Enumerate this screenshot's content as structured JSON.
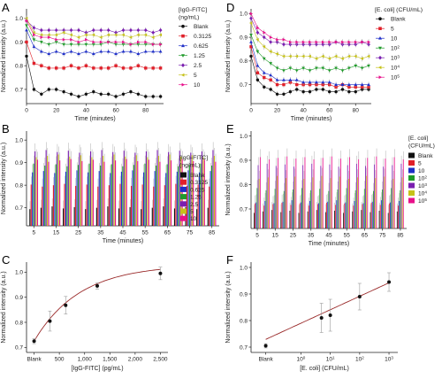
{
  "colors": {
    "Blank": "#111111",
    "c1": "#e0202a",
    "c2": "#1f2fc8",
    "c3": "#1f9a2a",
    "c4": "#7a1fb0",
    "c5": "#c6c21a",
    "c6": "#e8108a",
    "fit": "#9a2a2a",
    "err": "#999999"
  },
  "panels": {
    "A": "A",
    "B": "B",
    "C": "C",
    "D": "D",
    "E": "E",
    "F": "F"
  },
  "chart_data": [
    {
      "id": "A",
      "type": "scatter",
      "legend_title": [
        "[IgG-FITC]",
        "(ng/mL)"
      ],
      "xlabel": "Time (minutes)",
      "ylabel": "Normalized intensity (a.u.)",
      "xlim": [
        0,
        92
      ],
      "ylim": [
        0.64,
        1.04
      ],
      "xticks": [
        0,
        20,
        40,
        60,
        80
      ],
      "yticks": [
        0.7,
        0.8,
        0.9,
        1.0
      ],
      "x": [
        0,
        5,
        10,
        15,
        20,
        25,
        30,
        35,
        40,
        45,
        50,
        55,
        60,
        65,
        70,
        75,
        80,
        85,
        90
      ],
      "series": [
        {
          "name": "Blank",
          "marker": "circle",
          "values": [
            0.84,
            0.7,
            0.68,
            0.7,
            0.7,
            0.69,
            0.68,
            0.67,
            0.68,
            0.69,
            0.68,
            0.68,
            0.67,
            0.68,
            0.69,
            0.68,
            0.67,
            0.67,
            0.67
          ]
        },
        {
          "name": "0.3125",
          "marker": "square",
          "values": [
            0.9,
            0.81,
            0.8,
            0.79,
            0.79,
            0.79,
            0.8,
            0.79,
            0.8,
            0.79,
            0.79,
            0.79,
            0.8,
            0.79,
            0.79,
            0.8,
            0.79,
            0.79,
            0.79
          ]
        },
        {
          "name": "0.625",
          "marker": "triangle",
          "values": [
            0.95,
            0.88,
            0.86,
            0.85,
            0.86,
            0.85,
            0.86,
            0.85,
            0.86,
            0.85,
            0.86,
            0.86,
            0.85,
            0.86,
            0.86,
            0.85,
            0.86,
            0.86,
            0.86
          ]
        },
        {
          "name": "1.25",
          "marker": "triangle-down",
          "values": [
            0.97,
            0.91,
            0.9,
            0.89,
            0.9,
            0.89,
            0.89,
            0.89,
            0.89,
            0.89,
            0.89,
            0.9,
            0.89,
            0.89,
            0.89,
            0.89,
            0.89,
            0.89,
            0.89
          ]
        },
        {
          "name": "2.5",
          "marker": "diamond",
          "values": [
            0.99,
            0.96,
            0.95,
            0.95,
            0.95,
            0.95,
            0.95,
            0.95,
            0.94,
            0.95,
            0.95,
            0.95,
            0.94,
            0.95,
            0.95,
            0.95,
            0.95,
            0.94,
            0.95
          ]
        },
        {
          "name": "5",
          "marker": "triangle-left",
          "values": [
            1.0,
            0.94,
            0.93,
            0.93,
            0.93,
            0.94,
            0.93,
            0.92,
            0.93,
            0.93,
            0.92,
            0.93,
            0.93,
            0.93,
            0.92,
            0.93,
            0.93,
            0.92,
            0.93
          ]
        },
        {
          "name": "10",
          "marker": "triangle-right",
          "values": [
            0.99,
            0.93,
            0.92,
            0.92,
            0.91,
            0.91,
            0.91,
            0.9,
            0.91,
            0.9,
            0.9,
            0.9,
            0.9,
            0.9,
            0.89,
            0.9,
            0.9,
            0.89,
            0.89
          ]
        }
      ]
    },
    {
      "id": "D",
      "type": "scatter",
      "legend_title": [
        "[E. coli] (CFU/mL)"
      ],
      "xlabel": "Time (minutes)",
      "ylabel": "Normalized intensity (a.u.)",
      "xlim": [
        0,
        92
      ],
      "ylim": [
        0.62,
        1.02
      ],
      "xticks": [
        0,
        20,
        40,
        60,
        80
      ],
      "yticks": [
        0.7,
        0.8,
        0.9,
        1.0
      ],
      "x": [
        0,
        5,
        10,
        15,
        20,
        25,
        30,
        35,
        40,
        45,
        50,
        55,
        60,
        65,
        70,
        75,
        80,
        85,
        90
      ],
      "series": [
        {
          "name": "Blank",
          "marker": "circle",
          "values": [
            0.82,
            0.72,
            0.69,
            0.68,
            0.66,
            0.66,
            0.67,
            0.68,
            0.67,
            0.67,
            0.68,
            0.68,
            0.67,
            0.67,
            0.68,
            0.67,
            0.67,
            0.68,
            0.68
          ]
        },
        {
          "name": "5",
          "marker": "square",
          "values": [
            0.86,
            0.75,
            0.73,
            0.72,
            0.7,
            0.7,
            0.71,
            0.7,
            0.7,
            0.7,
            0.7,
            0.7,
            0.7,
            0.69,
            0.7,
            0.69,
            0.69,
            0.69,
            0.69
          ]
        },
        {
          "name": "10",
          "marker": "triangle",
          "values": [
            0.88,
            0.78,
            0.75,
            0.74,
            0.72,
            0.72,
            0.72,
            0.72,
            0.71,
            0.71,
            0.71,
            0.71,
            0.71,
            0.7,
            0.7,
            0.7,
            0.7,
            0.7,
            0.7
          ]
        },
        {
          "name": "10^2",
          "marker": "triangle-down",
          "values": [
            0.91,
            0.84,
            0.81,
            0.79,
            0.77,
            0.76,
            0.77,
            0.76,
            0.77,
            0.76,
            0.77,
            0.77,
            0.76,
            0.77,
            0.76,
            0.77,
            0.78,
            0.77,
            0.78
          ]
        },
        {
          "name": "10^3",
          "marker": "diamond",
          "values": [
            0.98,
            0.92,
            0.9,
            0.88,
            0.88,
            0.87,
            0.87,
            0.87,
            0.87,
            0.87,
            0.87,
            0.87,
            0.87,
            0.88,
            0.87,
            0.87,
            0.87,
            0.88,
            0.87
          ]
        },
        {
          "name": "10^4",
          "marker": "triangle-left",
          "values": [
            0.96,
            0.89,
            0.86,
            0.84,
            0.83,
            0.82,
            0.82,
            0.82,
            0.82,
            0.82,
            0.81,
            0.82,
            0.81,
            0.82,
            0.81,
            0.82,
            0.82,
            0.81,
            0.82
          ]
        },
        {
          "name": "10^5",
          "marker": "triangle-right",
          "values": [
            1.0,
            0.94,
            0.92,
            0.9,
            0.89,
            0.89,
            0.88,
            0.88,
            0.88,
            0.88,
            0.88,
            0.88,
            0.88,
            0.88,
            0.88,
            0.88,
            0.88,
            0.88,
            0.88
          ]
        }
      ]
    },
    {
      "id": "B",
      "type": "bar",
      "legend_title": [
        "[IgG-FITC]",
        "(ng/mL)"
      ],
      "xlabel": "Time (minutes)",
      "ylabel": "Normalized intensity (a.u.)",
      "ylim": [
        0.62,
        1.04
      ],
      "yticks": [
        0.7,
        0.8,
        0.9,
        1.0
      ],
      "categories": [
        "5",
        "10",
        "15",
        "20",
        "25",
        "30",
        "35",
        "40",
        "45",
        "50",
        "55",
        "60",
        "65",
        "70",
        "75",
        "80",
        "85"
      ],
      "tick_labels": [
        "5",
        "15",
        "25",
        "35",
        "45",
        "55",
        "65",
        "75",
        "85"
      ],
      "series": [
        {
          "name": "Blank",
          "value": 0.7
        },
        {
          "name": "0.3125",
          "value": 0.8
        },
        {
          "name": "0.625",
          "value": 0.86
        },
        {
          "name": "1.25",
          "value": 0.89
        },
        {
          "name": "2.5",
          "value": 0.95
        },
        {
          "name": "5",
          "value": 0.93
        },
        {
          "name": "10",
          "value": 0.91
        }
      ]
    },
    {
      "id": "E",
      "type": "bar",
      "legend_title": [
        "[E. coli]",
        "(CFU/mL)"
      ],
      "xlabel": "Time (minutes)",
      "ylabel": "Normalized intensity (a.u.)",
      "ylim": [
        0.62,
        1.02
      ],
      "yticks": [
        0.7,
        0.8,
        0.9,
        1.0
      ],
      "categories": [
        "5",
        "10",
        "15",
        "20",
        "25",
        "30",
        "35",
        "40",
        "45",
        "50",
        "55",
        "60",
        "65",
        "70",
        "75",
        "80",
        "85"
      ],
      "tick_labels": [
        "5",
        "15",
        "25",
        "35",
        "45",
        "55",
        "65",
        "75",
        "85"
      ],
      "series": [
        {
          "name": "Blank",
          "value": 0.69
        },
        {
          "name": "5",
          "value": 0.72
        },
        {
          "name": "10",
          "value": 0.73
        },
        {
          "name": "10^2",
          "value": 0.78
        },
        {
          "name": "10^3",
          "value": 0.88
        },
        {
          "name": "10^4",
          "value": 0.83
        },
        {
          "name": "10^5",
          "value": 0.91
        }
      ]
    },
    {
      "id": "C",
      "type": "scatter",
      "xlabel": "[IgG-FITC] (pg/mL)",
      "ylabel": "Normalized intensity (a.u.)",
      "xlim": [
        -150,
        2650
      ],
      "ylim": [
        0.68,
        1.04
      ],
      "xticks": [
        500,
        1000,
        1500,
        2000,
        2500
      ],
      "xtick_labels": [
        "500",
        "1,000",
        "1,500",
        "2,000",
        "2,500"
      ],
      "xtick_blank": "Blank",
      "yticks": [
        0.7,
        0.8,
        0.9,
        1.0
      ],
      "points": [
        {
          "x": 0,
          "y": 0.725,
          "err": 0.01
        },
        {
          "x": 312.5,
          "y": 0.805,
          "err": 0.04
        },
        {
          "x": 625,
          "y": 0.868,
          "err": 0.035
        },
        {
          "x": 1250,
          "y": 0.945,
          "err": 0.012
        },
        {
          "x": 2500,
          "y": 0.995,
          "err": 0.025
        }
      ]
    },
    {
      "id": "F",
      "type": "scatter",
      "xlabel": "[E. coli] (CFU/mL)",
      "ylabel": "Normalized intensity (a.u.)",
      "xlim": [
        -1.7,
        3.3
      ],
      "ylim": [
        0.68,
        1.02
      ],
      "xscale": "log",
      "xticks": [
        0,
        1,
        2,
        3
      ],
      "xtick_labels": [
        "10^0",
        "10^1",
        "10^2",
        "10^3"
      ],
      "xtick_blank": "Blank",
      "yticks": [
        0.7,
        0.8,
        0.9,
        1.0
      ],
      "points": [
        {
          "x": -1.2,
          "y": 0.705,
          "err": 0.008
        },
        {
          "x": 0.7,
          "y": 0.81,
          "err": 0.055
        },
        {
          "x": 1.0,
          "y": 0.82,
          "err": 0.06
        },
        {
          "x": 2.0,
          "y": 0.89,
          "err": 0.05
        },
        {
          "x": 3.0,
          "y": 0.945,
          "err": 0.035
        }
      ]
    }
  ]
}
